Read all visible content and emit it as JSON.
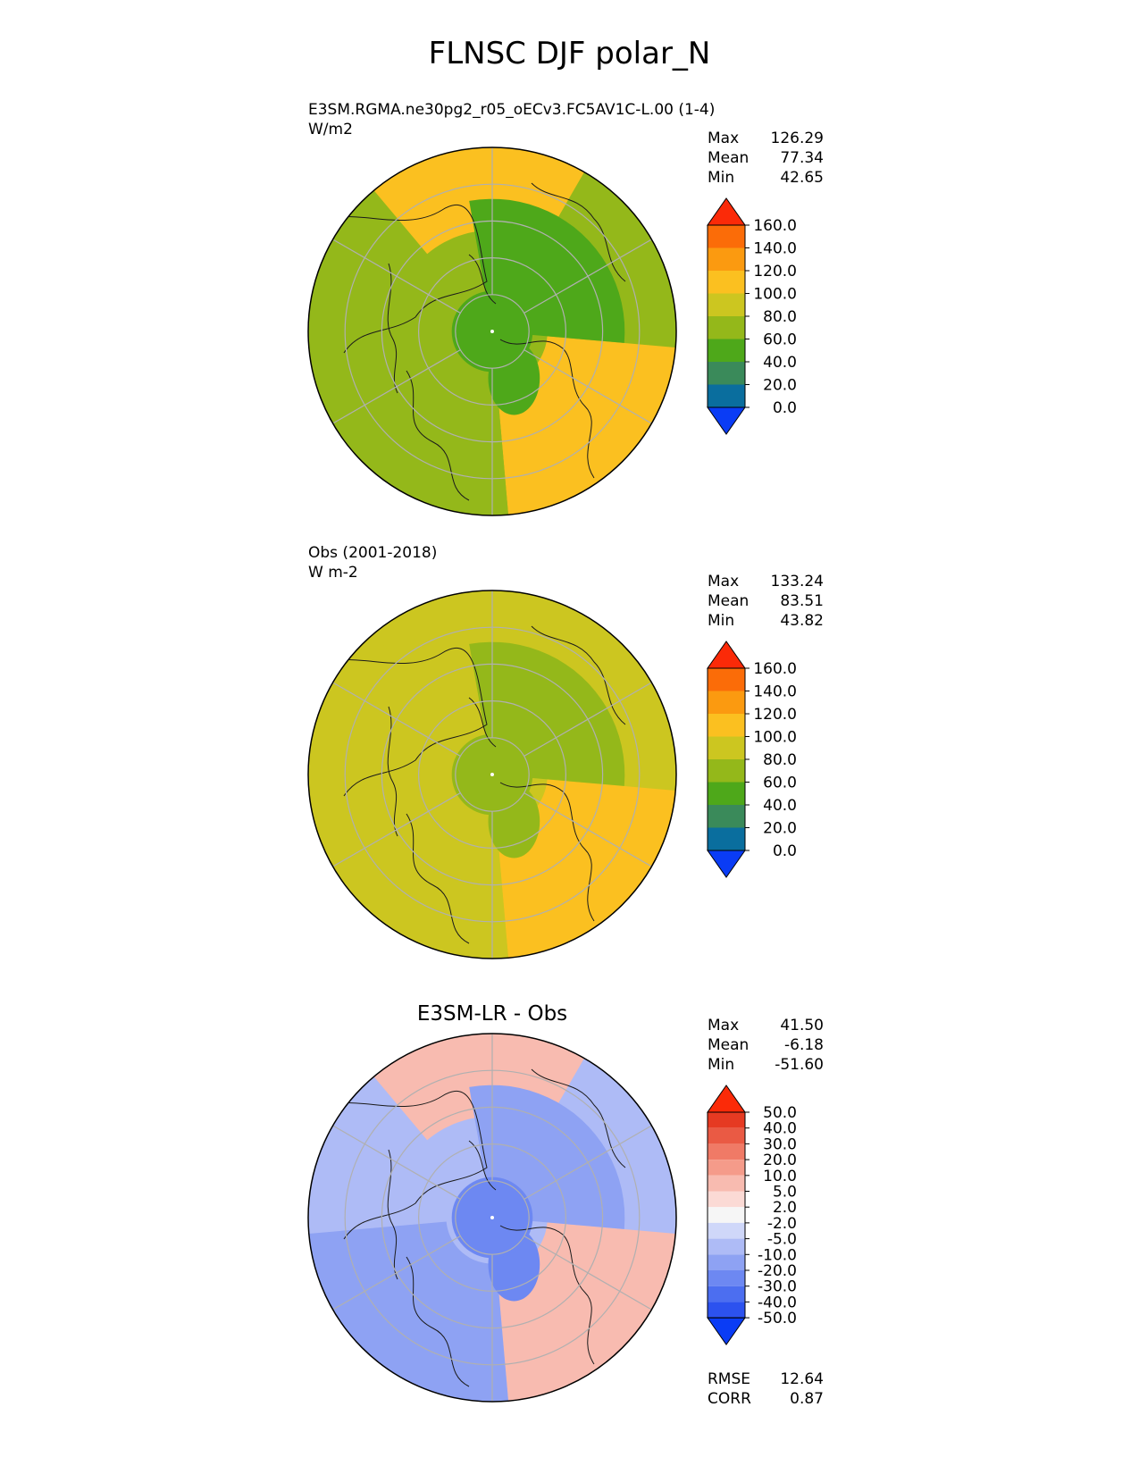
{
  "figure": {
    "title": "FLNSC DJF polar_N"
  },
  "colors": {
    "coastline": "#1a1a1a",
    "grid": "#b0b0b0",
    "abs_palette": [
      "#0a3cf5",
      "#0a6e9e",
      "#3a8a5a",
      "#4ea81a",
      "#94b81a",
      "#ccc620",
      "#fbc020",
      "#fb9a10",
      "#fb6c08",
      "#fb2a08"
    ],
    "diff_palette": [
      "#0a3cf5",
      "#2c52ef",
      "#4c6ef0",
      "#6d88f2",
      "#8ea2f3",
      "#aebbf6",
      "#cfd7f9",
      "#f6f6f6",
      "#fbdad5",
      "#f8bbb0",
      "#f59b8a",
      "#f07a66",
      "#ea5a44",
      "#e63a22",
      "#fb2a08"
    ]
  },
  "panels": [
    {
      "id": "test",
      "label_line1": "E3SM.RGMA.ne30pg2_r05_oECv3.FC5AV1C-L.00 (1-4)",
      "label_line2": "W/m2",
      "stats": [
        {
          "name": "Max",
          "value": "126.29"
        },
        {
          "name": "Mean",
          "value": "77.34"
        },
        {
          "name": "Min",
          "value": "42.65"
        }
      ]
    },
    {
      "id": "ref",
      "label_line1": "Obs (2001-2018)",
      "label_line2": "W m-2",
      "stats": [
        {
          "name": "Max",
          "value": "133.24"
        },
        {
          "name": "Mean",
          "value": "83.51"
        },
        {
          "name": "Min",
          "value": "43.82"
        }
      ]
    },
    {
      "id": "diff",
      "title": "E3SM-LR - Obs",
      "stats": [
        {
          "name": "Max",
          "value": "41.50"
        },
        {
          "name": "Mean",
          "value": "-6.18"
        },
        {
          "name": "Min",
          "value": "-51.60"
        }
      ],
      "metrics": [
        {
          "name": "RMSE",
          "value": "12.64"
        },
        {
          "name": "CORR",
          "value": "0.87"
        }
      ]
    }
  ],
  "chart_data": [
    {
      "type": "heatmap",
      "projection": "north-polar-stereographic",
      "title": "FLNSC DJF polar_N",
      "subtitle": "E3SM.RGMA.ne30pg2_r05_oECv3.FC5AV1C-L.00 (1-4)",
      "units": "W/m2",
      "max": 126.29,
      "mean": 77.34,
      "min": 42.65,
      "colorbar_levels": [
        0,
        20,
        40,
        60,
        80,
        100,
        120,
        140,
        160
      ],
      "colorbar_tick_labels": [
        "0.0",
        "20.0",
        "40.0",
        "60.0",
        "80.0",
        "100.0",
        "120.0",
        "140.0",
        "160.0"
      ],
      "regions": {
        "north_atlantic_europe": 105,
        "north_pacific": 100,
        "siberia": 58,
        "north_america": 75,
        "greenland": 55,
        "arctic_ocean": 50
      }
    },
    {
      "type": "heatmap",
      "projection": "north-polar-stereographic",
      "subtitle": "Obs (2001-2018)",
      "units": "W m-2",
      "max": 133.24,
      "mean": 83.51,
      "min": 43.82,
      "colorbar_levels": [
        0,
        20,
        40,
        60,
        80,
        100,
        120,
        140,
        160
      ],
      "colorbar_tick_labels": [
        "0.0",
        "20.0",
        "40.0",
        "60.0",
        "80.0",
        "100.0",
        "120.0",
        "140.0",
        "160.0"
      ],
      "regions": {
        "north_atlantic_europe": 108,
        "north_pacific": 98,
        "siberia": 75,
        "north_america": 82,
        "greenland": 62,
        "arctic_ocean": 78
      }
    },
    {
      "type": "heatmap",
      "projection": "north-polar-stereographic",
      "subtitle": "E3SM-LR - Obs",
      "max": 41.5,
      "mean": -6.18,
      "min": -51.6,
      "rmse": 12.64,
      "corr": 0.87,
      "colorbar_levels": [
        -50,
        -40,
        -30,
        -20,
        -10,
        -5,
        -2,
        2,
        5,
        10,
        20,
        30,
        40,
        50
      ],
      "colorbar_tick_labels": [
        "-50.0",
        "-40.0",
        "-30.0",
        "-20.0",
        "-10.0",
        "-5.0",
        "-2.0",
        "2.0",
        "5.0",
        "10.0",
        "20.0",
        "30.0",
        "40.0",
        "50.0"
      ],
      "regions": {
        "north_atlantic_europe": 8,
        "north_pacific": 6,
        "siberia": -18,
        "north_america": -12,
        "greenland": -25,
        "arctic_ocean": -28
      }
    }
  ]
}
